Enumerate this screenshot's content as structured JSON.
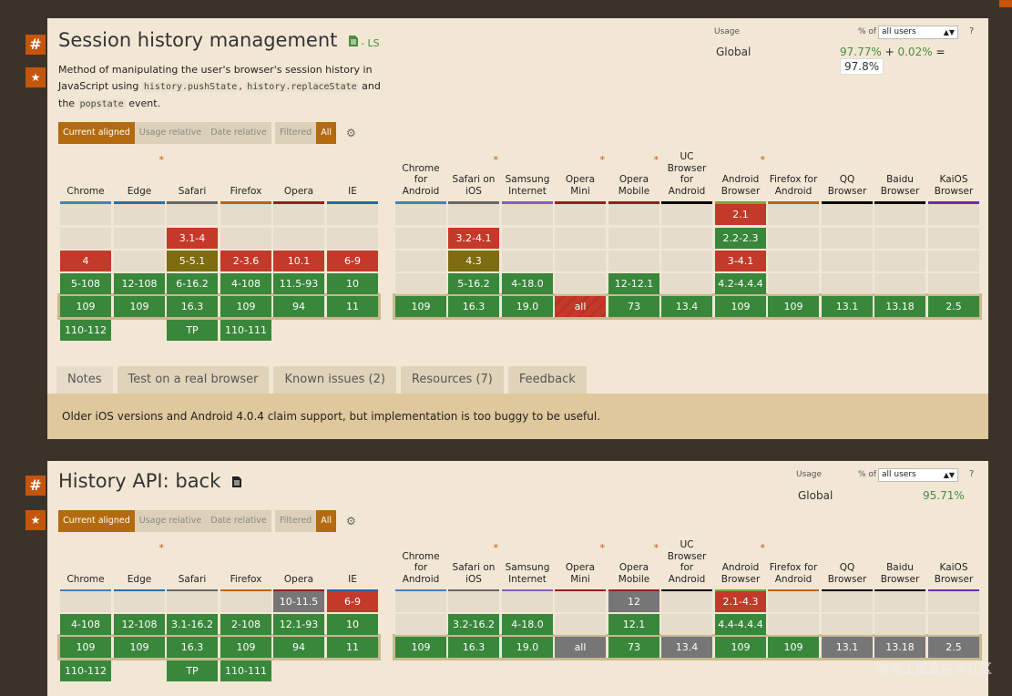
{
  "features": [
    {
      "title": "Session history management",
      "status_suffix": "- LS",
      "description": {
        "p1": "Method of manipulating the user's browser's session history in JavaScript using",
        "code1": "history.pushState",
        "sep": ",",
        "code2": "history.replaceState",
        "p2": "and the",
        "code3": "popstate",
        "p3": "event."
      },
      "usage": {
        "label": "Usage",
        "pct_of_label": "% of",
        "select_value": "all users",
        "help": "?",
        "global_label": "Global",
        "supported": "97.77%",
        "plus": "+",
        "partial": "0.02%",
        "equals": "=",
        "total": "97.8%"
      },
      "toggles": [
        "Current aligned",
        "Usage relative",
        "Date relative"
      ],
      "filter": [
        "Filtered",
        "All"
      ],
      "tabs": [
        "Notes",
        "Test on a real browser",
        "Known issues (2)",
        "Resources (7)",
        "Feedback"
      ],
      "note": "Older iOS versions and Android 4.0.4 claim support, but implementation is too buggy to be useful."
    },
    {
      "title": "History API: back",
      "usage": {
        "label": "Usage",
        "pct_of_label": "% of",
        "select_value": "all users",
        "help": "?",
        "global_label": "Global",
        "supported": "95.71%"
      },
      "toggles": [
        "Current aligned",
        "Usage relative",
        "Date relative"
      ],
      "filter": [
        "Filtered",
        "All"
      ]
    }
  ],
  "browsers": {
    "desktop": [
      {
        "name": "Chrome",
        "color": "#4a7fb8"
      },
      {
        "name": "Edge",
        "color": "#2a6dad",
        "asterisk": true
      },
      {
        "name": "Safari",
        "color": "#666666"
      },
      {
        "name": "Firefox",
        "color": "#c0620e"
      },
      {
        "name": "Opera",
        "color": "#9a1c1c"
      },
      {
        "name": "IE",
        "color": "#2f63a6"
      }
    ],
    "mobile": [
      {
        "name": "Chrome for Android",
        "color": "#4a7fb8"
      },
      {
        "name": "Safari on iOS",
        "color": "#666666",
        "asterisk": true
      },
      {
        "name": "Samsung Internet",
        "color": "#8a5ac2"
      },
      {
        "name": "Opera Mini",
        "color": "#9a1c1c",
        "asterisk": true
      },
      {
        "name": "Opera Mobile",
        "color": "#9a1c1c",
        "asterisk": true
      },
      {
        "name": "UC Browser for Android",
        "color": "#000000"
      },
      {
        "name": "Android Browser",
        "color": "#78a83a",
        "asterisk": true
      },
      {
        "name": "Firefox for Android",
        "color": "#c0620e"
      },
      {
        "name": "QQ Browser",
        "color": "#000000"
      },
      {
        "name": "Baidu Browser",
        "color": "#000000"
      },
      {
        "name": "KaiOS Browser",
        "color": "#6a2ab0"
      }
    ]
  },
  "grid1": {
    "desktop": [
      [
        [
          "",
          "e"
        ],
        [
          "",
          "e"
        ],
        [
          "4",
          "r"
        ],
        [
          "5-108",
          "g"
        ],
        [
          "109",
          "g"
        ],
        [
          "110-112",
          "g"
        ]
      ],
      [
        [
          "",
          "e"
        ],
        [
          "",
          "e"
        ],
        [
          "",
          "e"
        ],
        [
          "12-108",
          "g"
        ],
        [
          "109",
          "g"
        ],
        null
      ],
      [
        [
          "",
          "e"
        ],
        [
          "3.1-4",
          "r"
        ],
        [
          "5-5.1",
          "p"
        ],
        [
          "6-16.2",
          "g"
        ],
        [
          "16.3",
          "g"
        ],
        [
          "TP",
          "g"
        ]
      ],
      [
        [
          "",
          "e"
        ],
        [
          "",
          "e"
        ],
        [
          "2-3.6",
          "r"
        ],
        [
          "4-108",
          "g"
        ],
        [
          "109",
          "g"
        ],
        [
          "110-111",
          "g"
        ]
      ],
      [
        [
          "",
          "e"
        ],
        [
          "",
          "e"
        ],
        [
          "10.1",
          "r"
        ],
        [
          "11.5-93",
          "g"
        ],
        [
          "94",
          "g"
        ],
        null
      ],
      [
        [
          "",
          "e"
        ],
        [
          "",
          "e"
        ],
        [
          "6-9",
          "r"
        ],
        [
          "10",
          "g"
        ],
        [
          "11",
          "g"
        ],
        null
      ]
    ],
    "mobile": [
      [
        [
          "",
          "e"
        ],
        [
          "",
          "e"
        ],
        [
          "",
          "e"
        ],
        [
          "",
          "e"
        ],
        [
          "109",
          "g"
        ]
      ],
      [
        [
          "",
          "e"
        ],
        [
          "3.2-4.1",
          "r"
        ],
        [
          "4.3",
          "p"
        ],
        [
          "5-16.2",
          "g"
        ],
        [
          "16.3",
          "g"
        ]
      ],
      [
        [
          "",
          "e"
        ],
        [
          "",
          "e"
        ],
        [
          "",
          "e"
        ],
        [
          "4-18.0",
          "g"
        ],
        [
          "19.0",
          "g"
        ]
      ],
      [
        [
          "",
          "e"
        ],
        [
          "",
          "e"
        ],
        [
          "",
          "e"
        ],
        [
          "",
          "e"
        ],
        [
          "all",
          "rs"
        ]
      ],
      [
        [
          "",
          "e"
        ],
        [
          "",
          "e"
        ],
        [
          "",
          "e"
        ],
        [
          "12-12.1",
          "g"
        ],
        [
          "73",
          "g"
        ]
      ],
      [
        [
          "",
          "e"
        ],
        [
          "",
          "e"
        ],
        [
          "",
          "e"
        ],
        [
          "",
          "e"
        ],
        [
          "13.4",
          "g"
        ]
      ],
      [
        [
          "2.1",
          "r"
        ],
        [
          "2.2-2.3",
          "g"
        ],
        [
          "3-4.1",
          "r"
        ],
        [
          "4.2-4.4.4",
          "g"
        ],
        [
          "109",
          "g"
        ]
      ],
      [
        [
          "",
          "e"
        ],
        [
          "",
          "e"
        ],
        [
          "",
          "e"
        ],
        [
          "",
          "e"
        ],
        [
          "109",
          "g"
        ]
      ],
      [
        [
          "",
          "e"
        ],
        [
          "",
          "e"
        ],
        [
          "",
          "e"
        ],
        [
          "",
          "e"
        ],
        [
          "13.1",
          "g"
        ]
      ],
      [
        [
          "",
          "e"
        ],
        [
          "",
          "e"
        ],
        [
          "",
          "e"
        ],
        [
          "",
          "e"
        ],
        [
          "13.18",
          "g"
        ]
      ],
      [
        [
          "",
          "e"
        ],
        [
          "",
          "e"
        ],
        [
          "",
          "e"
        ],
        [
          "",
          "e"
        ],
        [
          "2.5",
          "g"
        ]
      ]
    ]
  },
  "grid2": {
    "desktop": [
      [
        [
          "",
          "e"
        ],
        [
          "4-108",
          "g"
        ],
        [
          "109",
          "g"
        ],
        [
          "110-112",
          "g"
        ]
      ],
      [
        [
          "",
          "e"
        ],
        [
          "12-108",
          "g"
        ],
        [
          "109",
          "g"
        ],
        null
      ],
      [
        [
          "",
          "e"
        ],
        [
          "3.1-16.2",
          "g"
        ],
        [
          "16.3",
          "g"
        ],
        [
          "TP",
          "g"
        ]
      ],
      [
        [
          "",
          "e"
        ],
        [
          "2-108",
          "g"
        ],
        [
          "109",
          "g"
        ],
        [
          "110-111",
          "g"
        ]
      ],
      [
        [
          "10-11.5",
          "gray"
        ],
        [
          "12.1-93",
          "g"
        ],
        [
          "94",
          "g"
        ],
        null
      ],
      [
        [
          "6-9",
          "r"
        ],
        [
          "10",
          "g"
        ],
        [
          "11",
          "g"
        ],
        null
      ]
    ],
    "mobile": [
      [
        [
          "",
          "e"
        ],
        [
          "",
          "e"
        ],
        [
          "109",
          "g"
        ]
      ],
      [
        [
          "",
          "e"
        ],
        [
          "3.2-16.2",
          "g"
        ],
        [
          "16.3",
          "g"
        ]
      ],
      [
        [
          "",
          "e"
        ],
        [
          "4-18.0",
          "g"
        ],
        [
          "19.0",
          "g"
        ]
      ],
      [
        [
          "",
          "e"
        ],
        [
          "",
          "e"
        ],
        [
          "all",
          "gray"
        ]
      ],
      [
        [
          "12",
          "gray"
        ],
        [
          "12.1",
          "g"
        ],
        [
          "73",
          "g"
        ]
      ],
      [
        [
          "",
          "e"
        ],
        [
          "",
          "e"
        ],
        [
          "13.4",
          "gray"
        ]
      ],
      [
        [
          "2.1-4.3",
          "r"
        ],
        [
          "4.4-4.4.4",
          "g"
        ],
        [
          "109",
          "g"
        ]
      ],
      [
        [
          "",
          "e"
        ],
        [
          "",
          "e"
        ],
        [
          "109",
          "g"
        ]
      ],
      [
        [
          "",
          "e"
        ],
        [
          "",
          "e"
        ],
        [
          "13.1",
          "gray"
        ]
      ],
      [
        [
          "",
          "e"
        ],
        [
          "",
          "e"
        ],
        [
          "13.18",
          "gray"
        ]
      ],
      [
        [
          "",
          "e"
        ],
        [
          "",
          "e"
        ],
        [
          "2.5",
          "gray"
        ]
      ]
    ]
  },
  "watermark": "@稀土掘金技术社区"
}
